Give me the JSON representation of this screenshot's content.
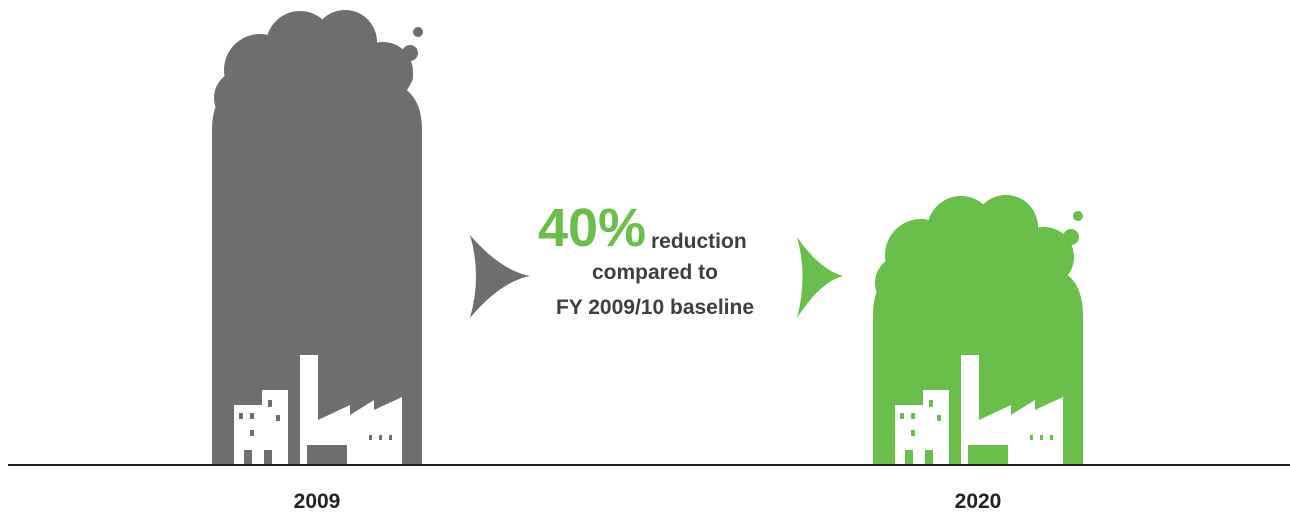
{
  "callout": {
    "value": "40%",
    "lines": [
      "reduction",
      "compared to",
      "FY 2009/10 baseline"
    ]
  },
  "labels": [
    "2009",
    "2020"
  ]
}
